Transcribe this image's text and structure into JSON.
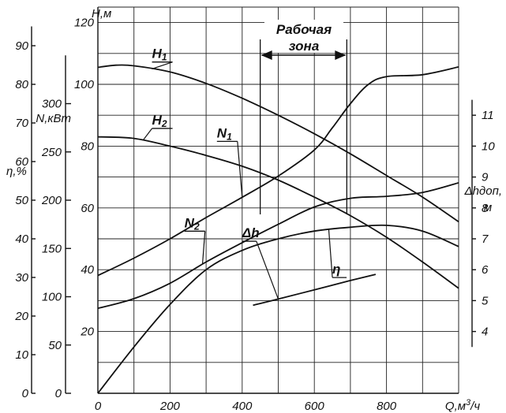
{
  "chart_data": {
    "type": "line",
    "title": "",
    "xlabel": "Q,м³/ч",
    "xlim": [
      0,
      1000
    ],
    "x_ticks": [
      0,
      200,
      400,
      600,
      800
    ],
    "grid": true,
    "axes": {
      "H": {
        "label": "Н,м",
        "lim": [
          0,
          125
        ],
        "ticks": [
          20,
          40,
          60,
          80,
          100,
          120
        ]
      },
      "N": {
        "label": "N,кВm",
        "lim": [
          0,
          400
        ],
        "ticks": [
          0,
          50,
          100,
          150,
          200,
          250,
          300
        ]
      },
      "eta": {
        "label": "η,%",
        "lim": [
          0,
          100
        ],
        "ticks": [
          0,
          10,
          20,
          30,
          40,
          50,
          60,
          70,
          80,
          90
        ]
      },
      "dh": {
        "label_line1": "Δhдоп,",
        "label_line2": "м",
        "lim": [
          2,
          14.5
        ],
        "ticks": [
          4,
          5,
          6,
          7,
          8,
          9,
          10,
          11
        ]
      }
    },
    "series": [
      {
        "name": "Н1",
        "axis": "H",
        "label_at": [
          150,
          108.5
        ],
        "x": [
          0,
          50,
          100,
          200,
          300,
          400,
          500,
          600,
          700,
          800,
          900,
          1000
        ],
        "y": [
          105.5,
          106.2,
          106,
          104,
          100.3,
          95.5,
          90,
          84,
          77.5,
          70.5,
          63.5,
          55.5
        ]
      },
      {
        "name": "Н2",
        "axis": "H",
        "label_at": [
          150,
          87
        ],
        "x": [
          0,
          100,
          200,
          300,
          400,
          500,
          600,
          700,
          800,
          900,
          1000
        ],
        "y": [
          83,
          82.5,
          80,
          77,
          73.5,
          69,
          63.5,
          57.5,
          50.5,
          42.5,
          34
        ]
      },
      {
        "name": "N1",
        "axis": "N",
        "label_at": [
          330,
          265
        ],
        "x": [
          0,
          100,
          200,
          300,
          400,
          500,
          600,
          650,
          700,
          750,
          800,
          900,
          1000
        ],
        "y": [
          122,
          140,
          160,
          182,
          203,
          225,
          252,
          275,
          300,
          320,
          328,
          330,
          338
        ]
      },
      {
        "name": "N2",
        "axis": "N",
        "label_at": [
          240,
          172
        ],
        "x": [
          0,
          100,
          200,
          300,
          400,
          500,
          600,
          700,
          800,
          900,
          1000
        ],
        "y": [
          88,
          98,
          114,
          136,
          156,
          175,
          193,
          202,
          204,
          208,
          218
        ]
      },
      {
        "name": "η",
        "axis": "eta",
        "label_at": [
          650,
          31
        ],
        "x": [
          0,
          100,
          200,
          300,
          400,
          500,
          600,
          700,
          800,
          900,
          1000
        ],
        "y": [
          0,
          12,
          23,
          32,
          37,
          40,
          42,
          43,
          43.5,
          42,
          38
        ]
      },
      {
        "name": "Δh",
        "axis": "dh",
        "label_at": [
          400,
          7.05
        ],
        "x": [
          430,
          500,
          600,
          700,
          770
        ],
        "y": [
          4.85,
          5.05,
          5.35,
          5.65,
          5.85
        ]
      }
    ],
    "annotations": {
      "zone_title": "Рабочая",
      "zone_subtitle": "зона",
      "zone_from": 450,
      "zone_to": 690
    }
  }
}
